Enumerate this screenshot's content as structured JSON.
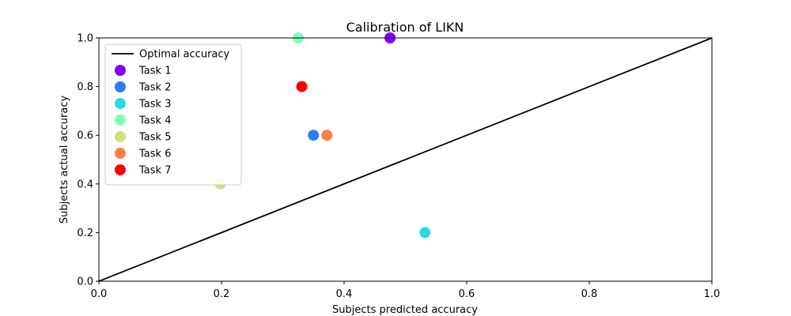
{
  "chart_data": {
    "type": "scatter",
    "title": "Calibration of LIKN",
    "xlabel": "Subjects predicted accuracy",
    "ylabel": "Subjects actual accuracy",
    "xlim": [
      0.0,
      1.0
    ],
    "ylim": [
      0.0,
      1.0
    ],
    "xticks": [
      "0.0",
      "0.2",
      "0.4",
      "0.6",
      "0.8",
      "1.0"
    ],
    "yticks": [
      "0.0",
      "0.2",
      "0.4",
      "0.6",
      "0.8",
      "1.0"
    ],
    "grid": false,
    "legend_position": "upper-left",
    "reference_line": {
      "name": "Optimal accuracy",
      "color": "#000000",
      "points": [
        [
          0.0,
          0.0
        ],
        [
          1.0,
          1.0
        ]
      ]
    },
    "series": [
      {
        "name": "Task 1",
        "color": "#8000ff",
        "points": [
          [
            0.475,
            1.0
          ]
        ]
      },
      {
        "name": "Task 2",
        "color": "#2c7ef7",
        "points": [
          [
            0.35,
            0.6
          ]
        ]
      },
      {
        "name": "Task 3",
        "color": "#2adddd",
        "points": [
          [
            0.532,
            0.2
          ]
        ]
      },
      {
        "name": "Task 4",
        "color": "#80ffb4",
        "points": [
          [
            0.325,
            1.0
          ]
        ]
      },
      {
        "name": "Task 5",
        "color": "#d4dd80",
        "points": [
          [
            0.198,
            0.4
          ]
        ]
      },
      {
        "name": "Task 6",
        "color": "#ff7e41",
        "points": [
          [
            0.372,
            0.6
          ]
        ]
      },
      {
        "name": "Task 7",
        "color": "#ff0000",
        "points": [
          [
            0.331,
            0.8
          ]
        ]
      }
    ]
  }
}
